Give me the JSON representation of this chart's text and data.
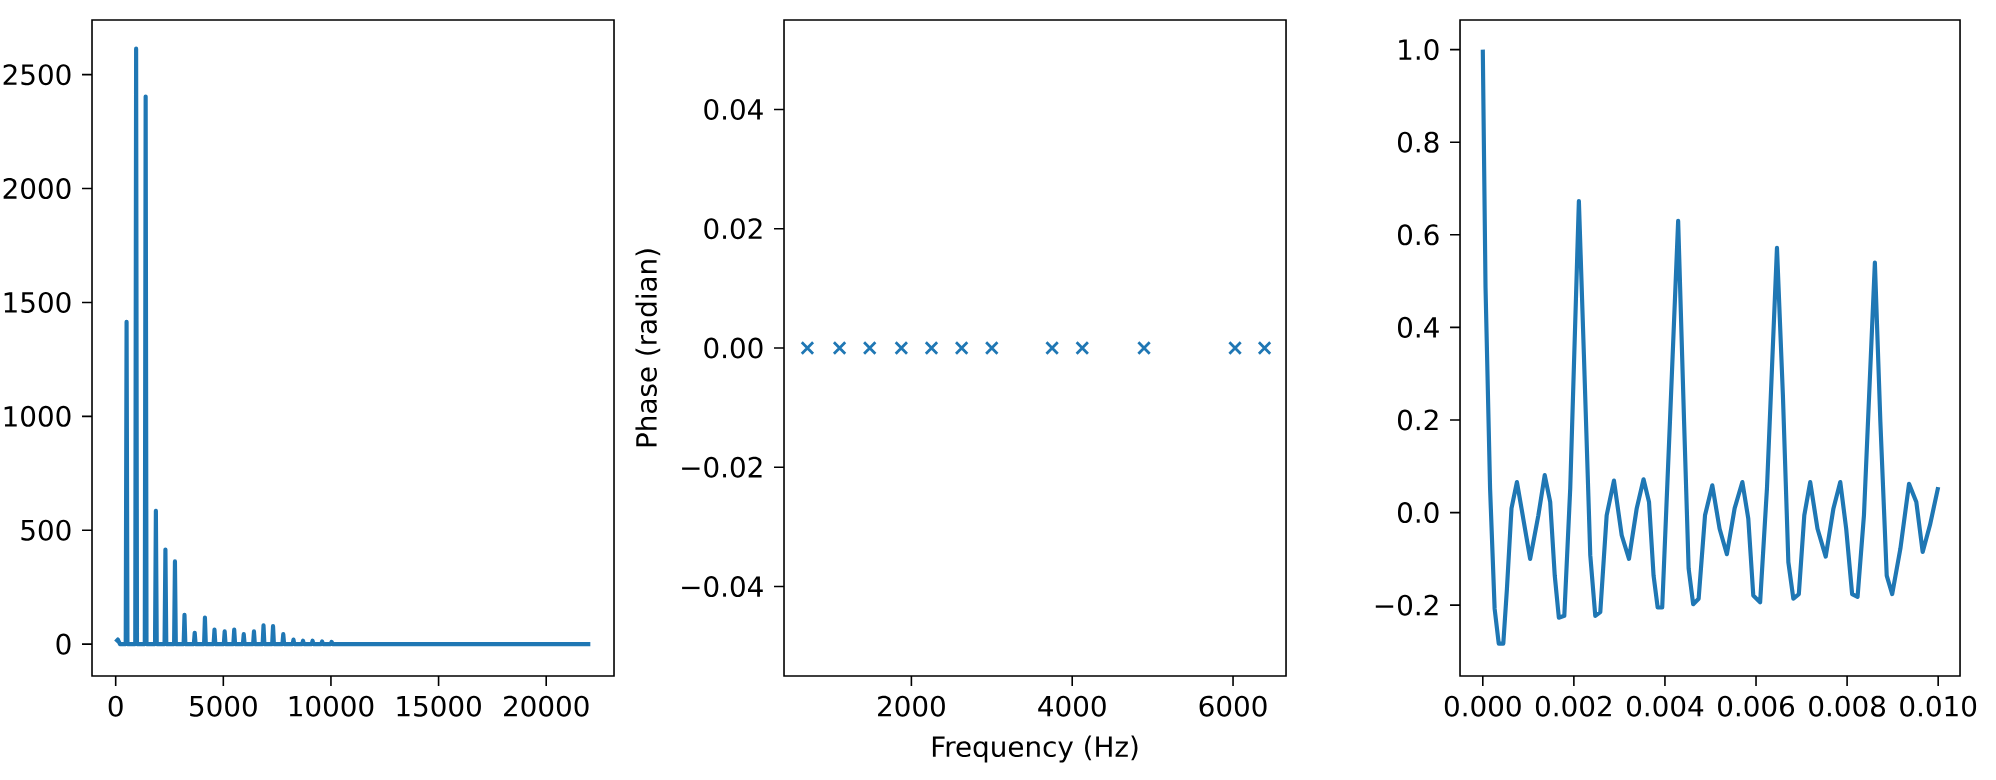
{
  "chart_data": [
    {
      "type": "line",
      "color": "#1f77b4",
      "xlim": [
        -1100,
        23150
      ],
      "ylim": [
        -140,
        2740
      ],
      "xticks": [
        0,
        5000,
        10000,
        15000,
        20000
      ],
      "yticks": [
        0,
        500,
        1000,
        1500,
        2000,
        2500
      ],
      "x": [
        0,
        100,
        200,
        466,
        506,
        546,
        909,
        949,
        989,
        1352,
        1392,
        1432,
        1827,
        1867,
        1907,
        2270,
        2310,
        2350,
        2713,
        2753,
        2793,
        3156,
        3196,
        3236,
        3631,
        3671,
        3711,
        4106,
        4146,
        4186,
        4549,
        4589,
        4629,
        5023,
        5063,
        5103,
        5466,
        5506,
        5546,
        5909,
        5949,
        5989,
        6384,
        6424,
        6464,
        6827,
        6867,
        6907,
        7270,
        7310,
        7350,
        7745,
        7785,
        7825,
        8219,
        8259,
        8299,
        8663,
        8703,
        8743,
        9106,
        9146,
        9186,
        9549,
        9589,
        9629,
        9992,
        10032,
        10072,
        15000,
        22050
      ],
      "values": [
        10,
        20,
        0,
        0,
        1415,
        0,
        0,
        2614,
        0,
        0,
        2404,
        0,
        0,
        585,
        0,
        0,
        415,
        0,
        0,
        363,
        0,
        0,
        129,
        0,
        0,
        50,
        0,
        0,
        117,
        0,
        0,
        64,
        0,
        0,
        56,
        0,
        0,
        64,
        0,
        0,
        44,
        0,
        0,
        56,
        0,
        0,
        82,
        0,
        0,
        79,
        0,
        0,
        44,
        0,
        0,
        20,
        0,
        0,
        15,
        0,
        0,
        15,
        0,
        0,
        12,
        0,
        0,
        10,
        0,
        0,
        0
      ]
    },
    {
      "type": "scatter",
      "color": "#1f77b4",
      "marker": "cross",
      "xlabel": "Frequency (Hz)",
      "ylabel": "Phase (radian)",
      "xlim": [
        416,
        6659
      ],
      "ylim": [
        -0.055,
        0.055
      ],
      "xticks": [
        2000,
        4000,
        6000
      ],
      "yticks": [
        {
          "value": -0.04,
          "label": "−0.04"
        },
        {
          "value": -0.02,
          "label": "−0.02"
        },
        {
          "value": 0,
          "label": "0.00"
        },
        {
          "value": 0.02,
          "label": "0.02"
        },
        {
          "value": 0.04,
          "label": "0.04"
        }
      ],
      "x": [
        707,
        1107,
        1482,
        1875,
        2250,
        2625,
        3000,
        3750,
        4125,
        4893,
        6025,
        6392
      ],
      "values": [
        0,
        0,
        0,
        0,
        0,
        0,
        0,
        0,
        0,
        0,
        0,
        0
      ]
    },
    {
      "type": "line",
      "color": "#1f77b4",
      "xlim": [
        -0.0005,
        0.01048
      ],
      "ylim": [
        -0.353,
        1.064
      ],
      "xticks": [
        {
          "value": 0,
          "label": "0.000"
        },
        {
          "value": 0.002,
          "label": "0.002"
        },
        {
          "value": 0.004,
          "label": "0.004"
        },
        {
          "value": 0.006,
          "label": "0.006"
        },
        {
          "value": 0.008,
          "label": "0.008"
        },
        {
          "value": 0.01,
          "label": "0.010"
        }
      ],
      "yticks": [
        {
          "value": -0.2,
          "label": "−0.2"
        },
        {
          "value": 0,
          "label": "0.0"
        },
        {
          "value": 0.2,
          "label": "0.2"
        },
        {
          "value": 0.4,
          "label": "0.4"
        },
        {
          "value": 0.6,
          "label": "0.6"
        },
        {
          "value": 0.8,
          "label": "0.8"
        },
        {
          "value": 1.0,
          "label": "1.0"
        }
      ],
      "x": [
        0,
        6e-05,
        0.00016,
        0.00026,
        0.00035,
        0.00045,
        0.00053,
        0.00063,
        0.00075,
        0.00085,
        0.00104,
        0.00122,
        0.00136,
        0.00148,
        0.00158,
        0.00167,
        0.00179,
        0.00192,
        0.00211,
        0.00222,
        0.00236,
        0.00247,
        0.00258,
        0.00272,
        0.00288,
        0.00305,
        0.00321,
        0.00338,
        0.00353,
        0.00365,
        0.00375,
        0.00384,
        0.00394,
        0.00411,
        0.00429,
        0.00442,
        0.00452,
        0.00462,
        0.00474,
        0.00488,
        0.00504,
        0.0052,
        0.00536,
        0.00553,
        0.0057,
        0.00583,
        0.00594,
        0.00609,
        0.00624,
        0.00646,
        0.00659,
        0.00671,
        0.00682,
        0.00694,
        0.00706,
        0.00719,
        0.00735,
        0.00753,
        0.0077,
        0.00785,
        0.00798,
        0.00811,
        0.00823,
        0.00837,
        0.00861,
        0.00873,
        0.00887,
        0.00899,
        0.00917,
        0.00936,
        0.00952,
        0.00966,
        0.00982,
        0.01
      ],
      "values": [
        1.0,
        0.486,
        0.052,
        -0.208,
        -0.283,
        -0.283,
        -0.165,
        0.009,
        0.066,
        0.009,
        -0.1,
        -0.006,
        0.081,
        0.023,
        -0.136,
        -0.227,
        -0.223,
        0.052,
        0.673,
        0.341,
        -0.092,
        -0.223,
        -0.215,
        -0.006,
        0.069,
        -0.049,
        -0.1,
        0.009,
        0.072,
        0.023,
        -0.136,
        -0.205,
        -0.205,
        0.197,
        0.63,
        0.197,
        -0.121,
        -0.198,
        -0.186,
        -0.006,
        0.059,
        -0.035,
        -0.09,
        0.009,
        0.066,
        -0.013,
        -0.179,
        -0.194,
        0.052,
        0.572,
        0.254,
        -0.107,
        -0.186,
        -0.176,
        -0.006,
        0.066,
        -0.035,
        -0.095,
        0.009,
        0.066,
        -0.035,
        -0.176,
        -0.182,
        -0.006,
        0.54,
        0.197,
        -0.136,
        -0.176,
        -0.078,
        0.062,
        0.023,
        -0.085,
        -0.027,
        0.055
      ]
    }
  ]
}
